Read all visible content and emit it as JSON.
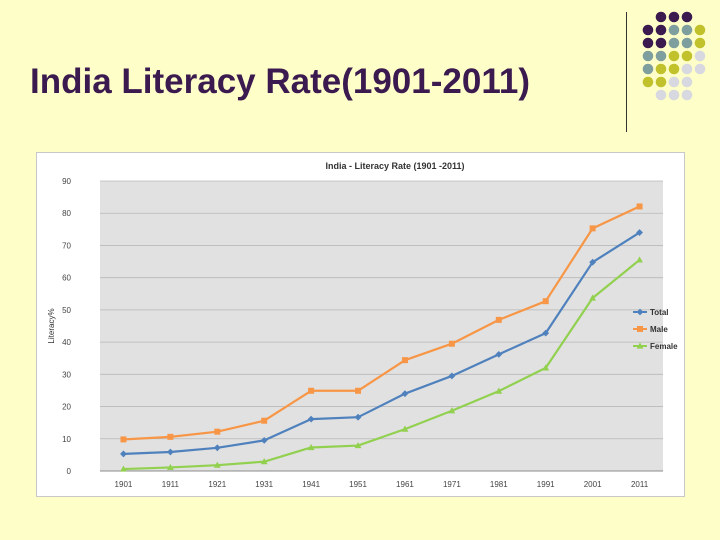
{
  "slide": {
    "title": "India Literacy Rate(1901-2011)",
    "background": "#fefec8",
    "title_color": "#3b1a4f",
    "decoration_colors": [
      "#3b1a4f",
      "#7f9f9f",
      "#c1c12c",
      "#d8d8e0"
    ]
  },
  "chart_data": {
    "type": "line",
    "title": "India - Literacy Rate (1901 -2011)",
    "xlabel": "",
    "ylabel": "Literacy%",
    "categories": [
      "1901",
      "1911",
      "1921",
      "1931",
      "1941",
      "1951",
      "1961",
      "1971",
      "1981",
      "1991",
      "2001",
      "2011"
    ],
    "ylim": [
      0,
      90
    ],
    "yticks": [
      0,
      10,
      20,
      30,
      40,
      50,
      60,
      70,
      80,
      90
    ],
    "grid": true,
    "legend_position": "right",
    "series": [
      {
        "name": "Total",
        "color": "#4f81bd",
        "marker": "diamond",
        "values": [
          5.3,
          5.9,
          7.2,
          9.5,
          16.1,
          16.7,
          24.0,
          29.5,
          36.2,
          42.8,
          64.8,
          74.0
        ]
      },
      {
        "name": "Male",
        "color": "#f79646",
        "marker": "square",
        "values": [
          9.8,
          10.6,
          12.2,
          15.6,
          24.9,
          24.9,
          34.4,
          39.5,
          46.9,
          52.7,
          75.3,
          82.1
        ]
      },
      {
        "name": "Female",
        "color": "#92d050",
        "marker": "triangle",
        "values": [
          0.6,
          1.1,
          1.8,
          2.9,
          7.3,
          7.9,
          13.0,
          18.7,
          24.8,
          32.0,
          53.7,
          65.5
        ]
      }
    ]
  }
}
